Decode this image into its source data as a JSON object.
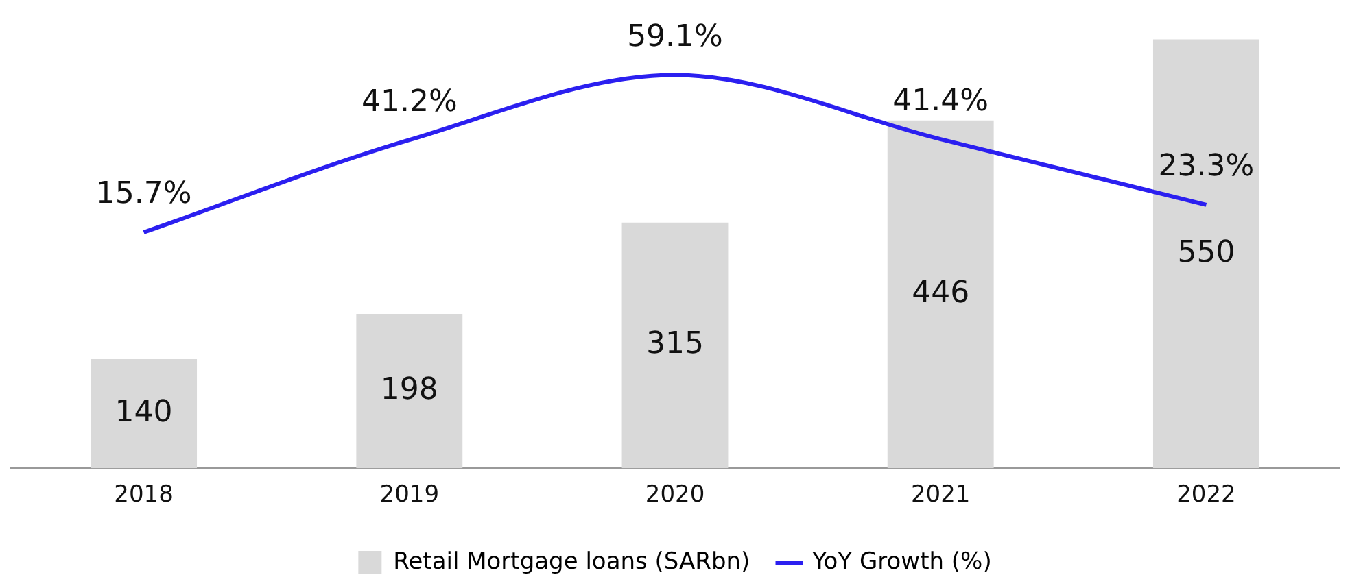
{
  "chart_data": {
    "type": "bar",
    "categories": [
      "2018",
      "2019",
      "2020",
      "2021",
      "2022"
    ],
    "series": [
      {
        "name": "Retail Mortgage loans (SARbn)",
        "color": "#d9d9d9",
        "values": [
          140,
          198,
          315,
          446,
          550
        ]
      },
      {
        "name": "YoY Growth (%)",
        "type": "line",
        "axis": "y2",
        "color": "#2b1ff0",
        "values": [
          15.7,
          41.2,
          59.1,
          41.4,
          23.3
        ],
        "value_labels": [
          "15.7%",
          "41.2%",
          "59.1%",
          "41.4%",
          "23.3%"
        ]
      }
    ],
    "tick_labels": "x",
    "data_labels": true,
    "legend": "bottom",
    "grid": false,
    "marker": "none"
  }
}
